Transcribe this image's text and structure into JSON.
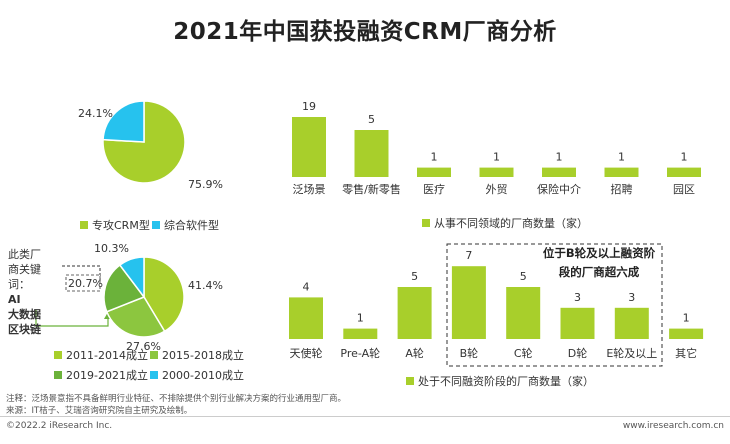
{
  "title": "2021年中国获投融资CRM厂商分析",
  "colors": {
    "green": "#a8cf2b",
    "cyan": "#26c2ee",
    "dark_green": "#6bb23a",
    "mid_green": "#8cc63f",
    "yellow_green": "#c9dd2b"
  },
  "chart_data": [
    {
      "type": "pie",
      "categories": [
        "专攻CRM型",
        "综合软件型"
      ],
      "values": [
        75.9,
        24.1
      ],
      "labels": [
        "75.9%",
        "24.1%"
      ]
    },
    {
      "type": "pie",
      "categories": [
        "2011-2014成立",
        "2015-2018成立",
        "2019-2021成立",
        "2000-2010成立"
      ],
      "values": [
        41.4,
        27.6,
        20.7,
        10.3
      ],
      "labels": [
        "41.4%",
        "27.6%",
        "20.7%",
        "10.3%"
      ]
    },
    {
      "type": "bar",
      "categories": [
        "泛场景",
        "零售/新零售",
        "医疗",
        "外贸",
        "保险中介",
        "招聘",
        "园区"
      ],
      "values": [
        19,
        5,
        1,
        1,
        1,
        1,
        1
      ],
      "legend": "从事不同领域的厂商数量（家）"
    },
    {
      "type": "bar",
      "categories": [
        "天使轮",
        "Pre-A轮",
        "A轮",
        "B轮",
        "C轮",
        "D轮",
        "E轮及以上",
        "其它"
      ],
      "values": [
        4,
        1,
        5,
        7,
        5,
        3,
        3,
        1
      ],
      "legend": "处于不同融资阶段的厂商数量（家）",
      "annotation": [
        "位于B轮及以上融资阶",
        "段的厂商超六成"
      ]
    }
  ],
  "side_note": {
    "lines": [
      "此类厂",
      "商关键",
      "词："
    ],
    "bold_lines": [
      "AI",
      "大数据",
      "区块链"
    ]
  },
  "notes": {
    "line1": "注释：泛场景意指不具备鲜明行业特征、不排除提供个别行业解决方案的行业通用型厂商。",
    "line2": "来源：IT桔子、艾瑞咨询研究院自主研究及绘制。"
  },
  "footer": {
    "left": "©2022.2 iResearch Inc.",
    "right": "www.iresearch.com.cn"
  }
}
